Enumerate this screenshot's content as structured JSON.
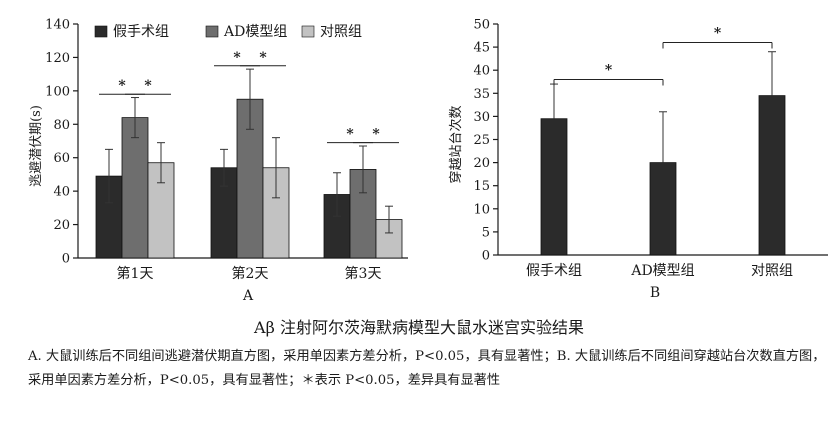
{
  "caption": {
    "title": "Aβ 注射阿尔茨海默病模型大鼠水迷宫实验结果",
    "note": "A. 大鼠训练后不同组间逃避潜伏期直方图，采用单因素方差分析，P<0.05，具有显著性；B. 大鼠训练后不同组间穿越站台次数直方图，采用单因素方差分析，P<0.05，具有显著性；＊表示 P<0.05，差异具有显著性"
  },
  "colors": {
    "sham": "#2b2b2b",
    "ad": "#6e6e6e",
    "control": "#c2c2c2",
    "axis": "#1a1a1a"
  },
  "chart_data": [
    {
      "type": "bar",
      "panel_label": "A",
      "ylabel": "逃避潜伏期(s)",
      "xlabel": "",
      "ylim": [
        0,
        140
      ],
      "yticks": [
        0,
        20,
        40,
        60,
        80,
        100,
        120,
        140
      ],
      "categories": [
        "第1天",
        "第2天",
        "第3天"
      ],
      "legend": {
        "placement": "top",
        "entries": [
          "假手术组",
          "AD模型组",
          "对照组"
        ]
      },
      "series": [
        {
          "name": "假手术组",
          "values": [
            49,
            54,
            38
          ],
          "errors": [
            16,
            11,
            13
          ]
        },
        {
          "name": "AD模型组",
          "values": [
            84,
            95,
            53
          ],
          "errors": [
            12,
            18,
            14
          ]
        },
        {
          "name": "对照组",
          "values": [
            57,
            54,
            23
          ],
          "errors": [
            12,
            18,
            8
          ]
        }
      ],
      "significance": [
        {
          "category": 0,
          "pair": [
            0,
            1
          ],
          "label": "*"
        },
        {
          "category": 0,
          "pair": [
            1,
            2
          ],
          "label": "*"
        },
        {
          "category": 1,
          "pair": [
            0,
            1
          ],
          "label": "*"
        },
        {
          "category": 1,
          "pair": [
            1,
            2
          ],
          "label": "*"
        },
        {
          "category": 2,
          "pair": [
            0,
            1
          ],
          "label": "*"
        },
        {
          "category": 2,
          "pair": [
            1,
            2
          ],
          "label": "*"
        }
      ]
    },
    {
      "type": "bar",
      "panel_label": "B",
      "ylabel": "穿越站台次数",
      "xlabel": "",
      "ylim": [
        0,
        50
      ],
      "yticks": [
        0,
        5,
        10,
        15,
        20,
        25,
        30,
        35,
        40,
        45,
        50
      ],
      "categories": [
        "假手术组",
        "AD模型组",
        "对照组"
      ],
      "values": [
        29.5,
        20,
        34.5
      ],
      "errors": [
        7.5,
        11,
        9.5
      ],
      "significance": [
        {
          "pair": [
            0,
            1
          ],
          "label": "*",
          "y": 38
        },
        {
          "pair": [
            1,
            2
          ],
          "label": "*",
          "y": 46
        }
      ]
    }
  ]
}
